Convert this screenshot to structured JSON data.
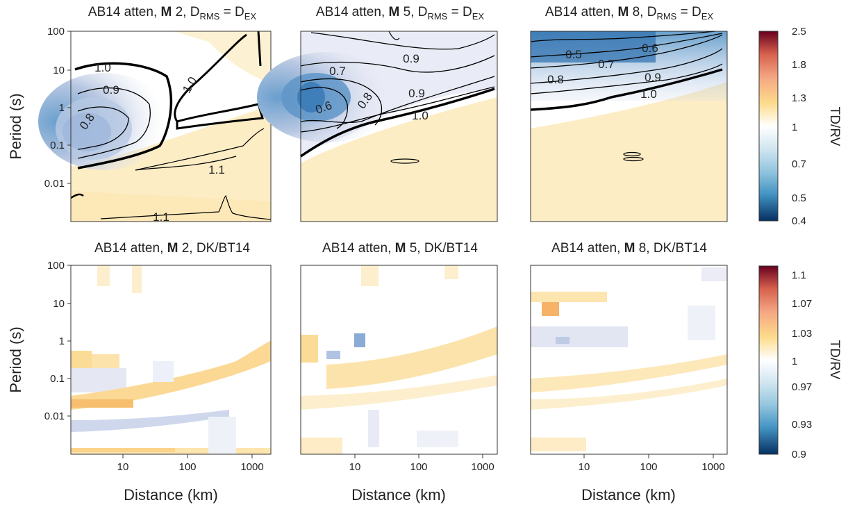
{
  "figure": {
    "ylabel": "Period (s)",
    "xlabel": "Distance (km)",
    "colorbar_label": "TD/RV"
  },
  "chart_data": [
    {
      "type": "heatmap",
      "title_prefix": "AB14 atten, ",
      "title_bold": "M",
      "title_rest": " 2, D",
      "title_sub1": "RMS",
      "title_eq": " = D",
      "title_sub2": "EX",
      "xscale": "log",
      "yscale": "log",
      "xlim": [
        1.5,
        1500
      ],
      "ylim": [
        0.001,
        100
      ],
      "xticks": [
        "10",
        "100",
        "1000"
      ],
      "yticks": [
        "100",
        "10",
        "1",
        "0.1",
        "0.01"
      ],
      "contour_labels": [
        "1.0",
        "0.9",
        "0.8",
        "1.0",
        "1.1",
        "1.1"
      ]
    },
    {
      "type": "heatmap",
      "title_prefix": "AB14 atten, ",
      "title_bold": "M",
      "title_rest": " 5, D",
      "title_sub1": "RMS",
      "title_eq": " = D",
      "title_sub2": "EX",
      "xscale": "log",
      "yscale": "log",
      "xlim": [
        1.5,
        1500
      ],
      "ylim": [
        0.001,
        100
      ],
      "xticks": [
        "10",
        "100",
        "1000"
      ],
      "yticks": [
        "100",
        "10",
        "1",
        "0.1",
        "0.01"
      ],
      "contour_labels": [
        "0.9",
        "0.7",
        "0.9",
        "0.6",
        "0.8",
        "1.0"
      ]
    },
    {
      "type": "heatmap",
      "title_prefix": "AB14 atten, ",
      "title_bold": "M",
      "title_rest": " 8, D",
      "title_sub1": "RMS",
      "title_eq": " = D",
      "title_sub2": "EX",
      "xscale": "log",
      "yscale": "log",
      "xlim": [
        1.5,
        1500
      ],
      "ylim": [
        0.001,
        100
      ],
      "xticks": [
        "10",
        "100",
        "1000"
      ],
      "yticks": [
        "100",
        "10",
        "1",
        "0.1",
        "0.01"
      ],
      "contour_labels": [
        "0.5",
        "0.6",
        "0.7",
        "0.8",
        "0.9",
        "1.0"
      ]
    },
    {
      "type": "heatmap",
      "title_prefix": "AB14 atten, ",
      "title_bold": "M",
      "title_rest": " 2, DK/BT14",
      "xscale": "log",
      "yscale": "log",
      "xlim": [
        1.5,
        1500
      ],
      "ylim": [
        0.001,
        100
      ],
      "xticks": [
        "10",
        "100",
        "1000"
      ],
      "yticks": [
        "100",
        "10",
        "1",
        "0.1",
        "0.01"
      ]
    },
    {
      "type": "heatmap",
      "title_prefix": "AB14 atten, ",
      "title_bold": "M",
      "title_rest": " 5, DK/BT14",
      "xscale": "log",
      "yscale": "log",
      "xlim": [
        1.5,
        1500
      ],
      "ylim": [
        0.001,
        100
      ],
      "xticks": [
        "10",
        "100",
        "1000"
      ],
      "yticks": [
        "100",
        "10",
        "1",
        "0.1",
        "0.01"
      ]
    },
    {
      "type": "heatmap",
      "title_prefix": "AB14 atten, ",
      "title_bold": "M",
      "title_rest": " 8, DK/BT14",
      "xscale": "log",
      "yscale": "log",
      "xlim": [
        1.5,
        1500
      ],
      "ylim": [
        0.001,
        100
      ],
      "xticks": [
        "10",
        "100",
        "1000"
      ],
      "yticks": [
        "100",
        "10",
        "1",
        "0.1",
        "0.01"
      ]
    }
  ],
  "colorbars": [
    {
      "ticks": [
        "2.5",
        "1.8",
        "1.3",
        "1",
        "0.7",
        "0.5",
        "0.4"
      ],
      "colors": [
        "#67001f",
        "#d6604d",
        "#f4a582",
        "#fddc8c",
        "#ffffff",
        "#d1e5f0",
        "#92c5de",
        "#4393c3",
        "#053061"
      ]
    },
    {
      "ticks": [
        "1.1",
        "1.07",
        "1.03",
        "1",
        "0.97",
        "0.93",
        "0.9"
      ],
      "colors": [
        "#67001f",
        "#d6604d",
        "#f4a582",
        "#fddc8c",
        "#ffffff",
        "#d1e5f0",
        "#92c5de",
        "#4393c3",
        "#053061"
      ]
    }
  ]
}
